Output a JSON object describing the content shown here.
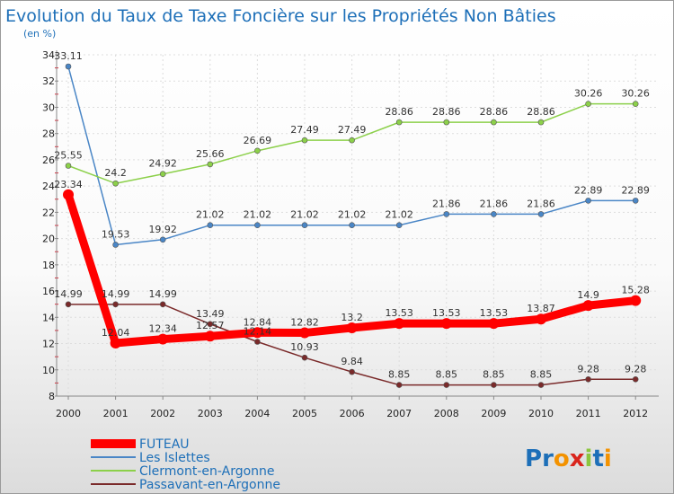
{
  "chart_data": {
    "type": "line",
    "title": "Evolution du Taux de Taxe Foncière sur les Propriétés Non Bâties",
    "subtitle": "(en %)",
    "categories": [
      "2000",
      "2001",
      "2002",
      "2003",
      "2004",
      "2005",
      "2006",
      "2007",
      "2008",
      "2009",
      "2010",
      "2011",
      "2012"
    ],
    "ylim": [
      8,
      34
    ],
    "yticks": [
      8,
      10,
      12,
      14,
      16,
      18,
      20,
      22,
      24,
      26,
      28,
      30,
      32,
      34
    ],
    "grid": true,
    "legend_position": "bottom-left",
    "series": [
      {
        "name": "FUTEAU",
        "color": "#ff0000",
        "values": [
          23.34,
          12.04,
          12.34,
          12.57,
          12.84,
          12.82,
          13.2,
          13.53,
          13.53,
          13.53,
          13.87,
          14.9,
          15.28
        ],
        "labels": [
          "23.34",
          "12.04",
          "12.34",
          "12.57",
          "12.84",
          "12.82",
          "13.2",
          "13.53",
          "13.53",
          "13.53",
          "13.87",
          "14.9",
          "15.28"
        ]
      },
      {
        "name": "Les Islettes",
        "color": "#4a86c6",
        "values": [
          33.11,
          19.53,
          19.92,
          21.02,
          21.02,
          21.02,
          21.02,
          21.02,
          21.86,
          21.86,
          21.86,
          22.89,
          22.89
        ],
        "labels": [
          "33.11",
          "19.53",
          "19.92",
          "21.02",
          "21.02",
          "21.02",
          "21.02",
          "21.02",
          "21.86",
          "21.86",
          "21.86",
          "22.89",
          "22.89"
        ]
      },
      {
        "name": "Clermont-en-Argonne",
        "color": "#8cd04a",
        "values": [
          25.55,
          24.2,
          24.92,
          25.66,
          26.69,
          27.49,
          27.49,
          28.86,
          28.86,
          28.86,
          28.86,
          30.26,
          30.26
        ],
        "labels": [
          "25.55",
          "24.2",
          "24.92",
          "25.66",
          "26.69",
          "27.49",
          "27.49",
          "28.86",
          "28.86",
          "28.86",
          "28.86",
          "30.26",
          "30.26"
        ]
      },
      {
        "name": "Passavant-en-Argonne",
        "color": "#7a2a2a",
        "values": [
          14.99,
          14.99,
          14.99,
          13.49,
          12.14,
          10.93,
          9.84,
          8.85,
          8.85,
          8.85,
          8.85,
          9.28,
          9.28
        ],
        "labels": [
          "14.99",
          "14.99",
          "14.99",
          "13.49",
          "12.14",
          "10.93",
          "9.84",
          "8.85",
          "8.85",
          "8.85",
          "8.85",
          "9.28",
          "9.28"
        ]
      }
    ]
  },
  "logo": {
    "text": "Proxiti",
    "letters": [
      "P",
      "r",
      "o",
      "x",
      "i",
      "t",
      "i"
    ],
    "colors": [
      "#1d6fb8",
      "#1d6fb8",
      "#f39200",
      "#d9251d",
      "#8cc63e",
      "#1d6fb8",
      "#f39200"
    ]
  }
}
